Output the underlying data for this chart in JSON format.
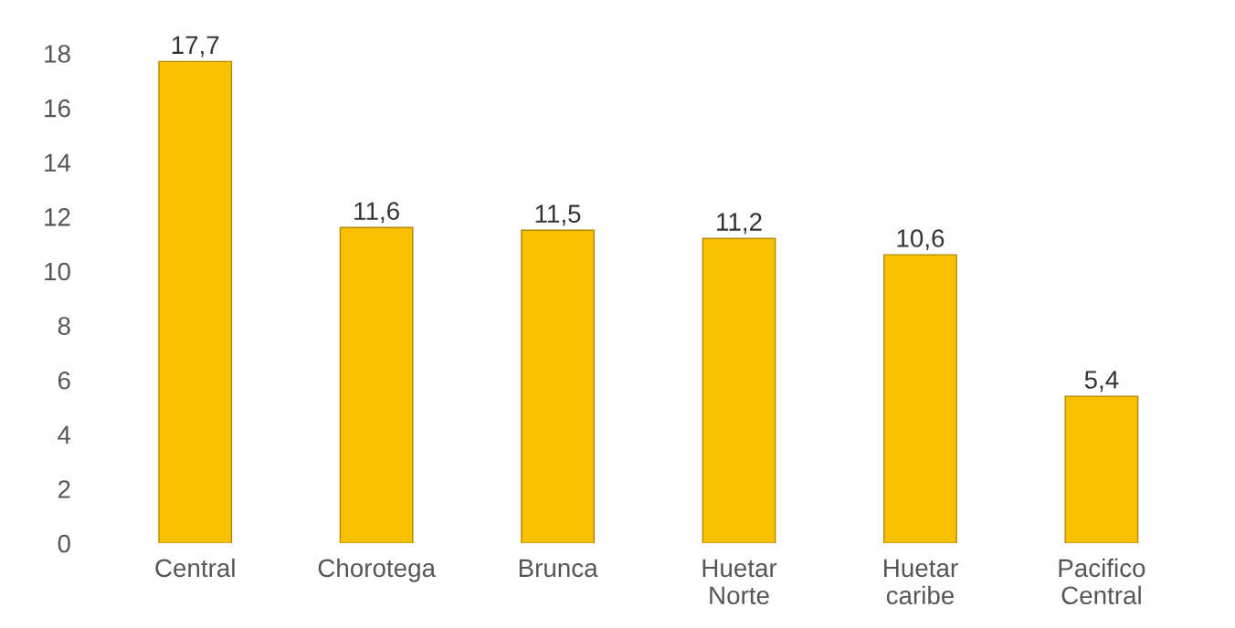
{
  "chart_data": {
    "type": "bar",
    "categories": [
      "Central",
      "Chorotega",
      "Brunca",
      "Huetar\nNorte",
      "Huetar\ncaribe",
      "Pacifico\nCentral"
    ],
    "values": [
      17.7,
      11.6,
      11.5,
      11.2,
      10.6,
      5.4
    ],
    "value_labels": [
      "17,7",
      "11,6",
      "11,5",
      "11,2",
      "10,6",
      "5,4"
    ],
    "color": "#f9c000",
    "ylim": [
      0,
      18
    ],
    "yticks": [
      0,
      2,
      4,
      6,
      8,
      10,
      12,
      14,
      16,
      18
    ],
    "grid": false
  }
}
